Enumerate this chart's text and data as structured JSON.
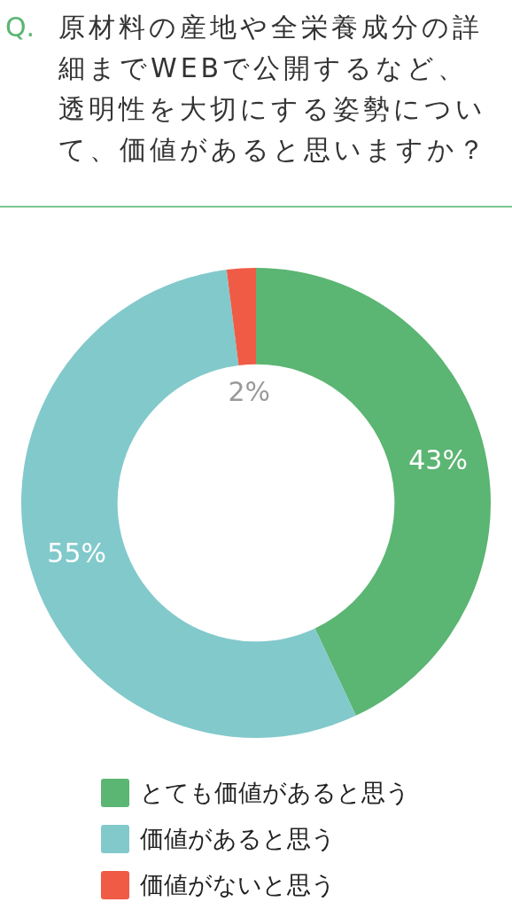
{
  "chart_data": {
    "type": "donut",
    "title": "原材料の産地や全栄養成分の詳細までWEBで公開するなど、透明性を大切にする姿勢について、価値があると思いますか？",
    "annotations": [
      "Q."
    ],
    "categories": [
      "とても価値があると思う",
      "価値があると思う",
      "価値がないと思う"
    ],
    "values": [
      43,
      55,
      2
    ],
    "colors": [
      "#5bb573",
      "#82c9cb",
      "#ef5b45"
    ],
    "value_labels": [
      "43%",
      "55%",
      "2%"
    ],
    "legend": "bottom"
  }
}
